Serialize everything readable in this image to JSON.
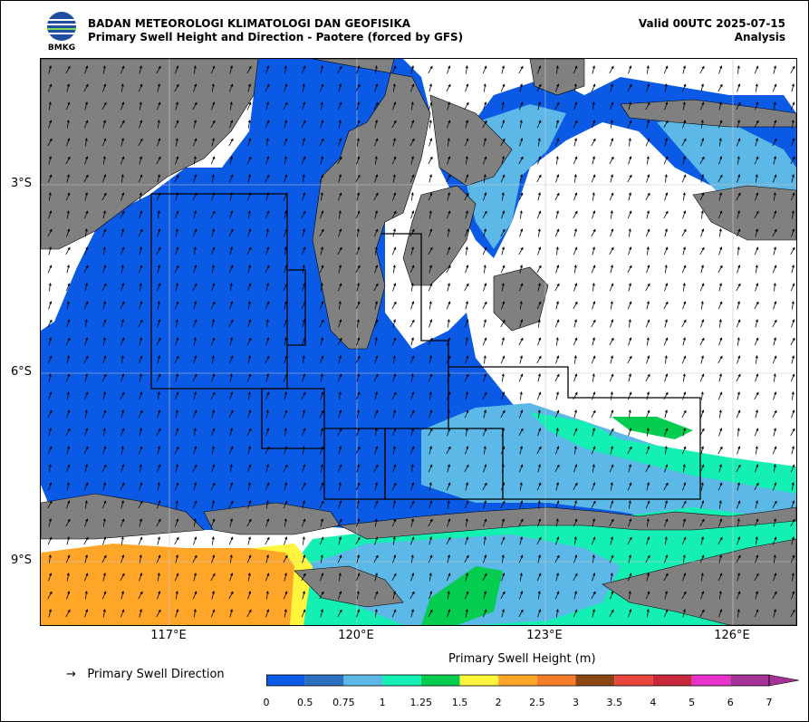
{
  "header": {
    "agency": "BADAN METEOROLOGI KLIMATOLOGI DAN GEOFISIKA",
    "subtitle": "Primary Swell Height and Direction - Paotere (forced by GFS)",
    "valid": "Valid 00UTC 2025-07-15",
    "type": "Analysis",
    "logo_text": "BMKG"
  },
  "map": {
    "lon_range": [
      114.2,
      127.3
    ],
    "lat_range": [
      -10.2,
      -1.2
    ],
    "lat_labels": [
      "3°S",
      "6°S",
      "9°S"
    ],
    "lon_labels": [
      "117°E",
      "120°E",
      "123°E",
      "126°E"
    ],
    "gridlines": true,
    "land_color": "#808080",
    "arrow_direction": "north-northeast"
  },
  "legend": {
    "direction_label": "Primary Swell Direction",
    "arrow_glyph": "→"
  },
  "colorbar": {
    "title": "Primary Swell Height (m)",
    "ticks": [
      "0",
      "0.5",
      "0.75",
      "1",
      "1.25",
      "1.5",
      "2",
      "2.5",
      "3",
      "3.5",
      "4",
      "5",
      "6",
      "7"
    ],
    "colors": [
      "#0a5ae6",
      "#2d6fbf",
      "#5cb8e6",
      "#14f0b4",
      "#05cd50",
      "#fff53c",
      "#ffa528",
      "#f57d28",
      "#8c4614",
      "#e6463c",
      "#c8283c",
      "#e632c8",
      "#a53296"
    ],
    "extend": "max"
  }
}
